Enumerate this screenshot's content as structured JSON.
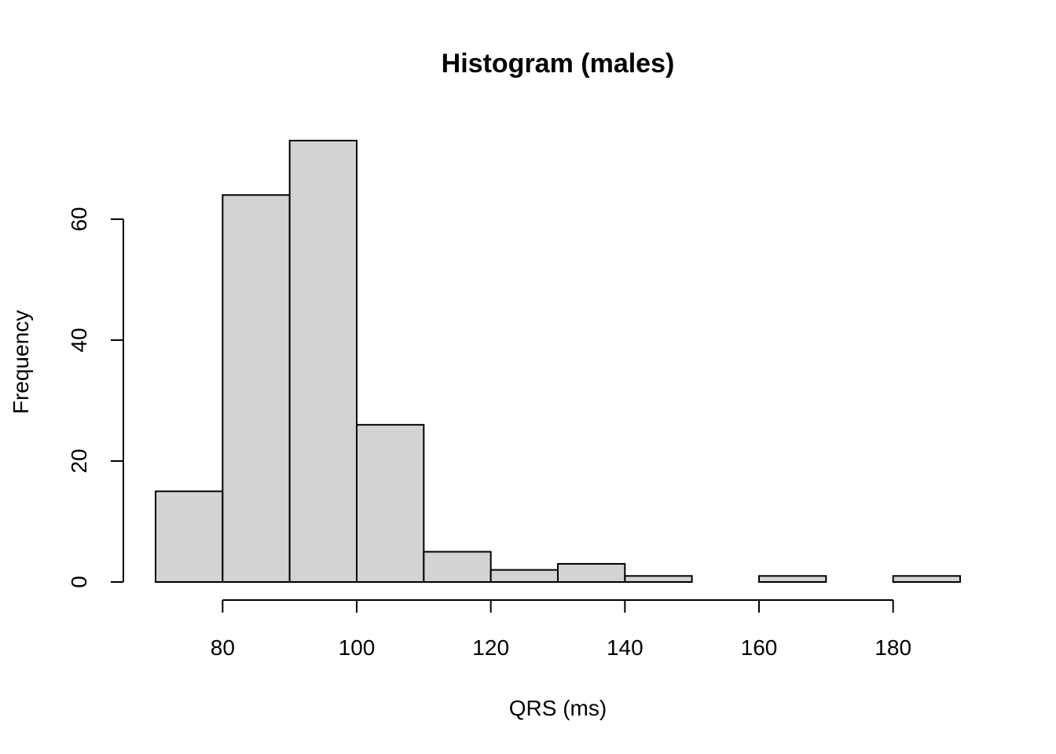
{
  "chart_data": {
    "type": "bar",
    "title": "Histogram (males)",
    "xlabel": "QRS (ms)",
    "ylabel": "Frequency",
    "bins": [
      {
        "start": 70,
        "end": 80,
        "count": 15
      },
      {
        "start": 80,
        "end": 90,
        "count": 64
      },
      {
        "start": 90,
        "end": 100,
        "count": 73
      },
      {
        "start": 100,
        "end": 110,
        "count": 26
      },
      {
        "start": 110,
        "end": 120,
        "count": 5
      },
      {
        "start": 120,
        "end": 130,
        "count": 2
      },
      {
        "start": 130,
        "end": 140,
        "count": 3
      },
      {
        "start": 140,
        "end": 150,
        "count": 1
      },
      {
        "start": 150,
        "end": 160,
        "count": 0
      },
      {
        "start": 160,
        "end": 170,
        "count": 1
      },
      {
        "start": 170,
        "end": 180,
        "count": 0
      },
      {
        "start": 180,
        "end": 190,
        "count": 1
      }
    ],
    "xlim": [
      70,
      190
    ],
    "ylim": [
      0,
      73
    ],
    "x_ticks": [
      80,
      100,
      120,
      140,
      160,
      180
    ],
    "y_ticks": [
      0,
      20,
      40,
      60
    ],
    "grid": false,
    "fill_color": "#d3d3d3"
  }
}
